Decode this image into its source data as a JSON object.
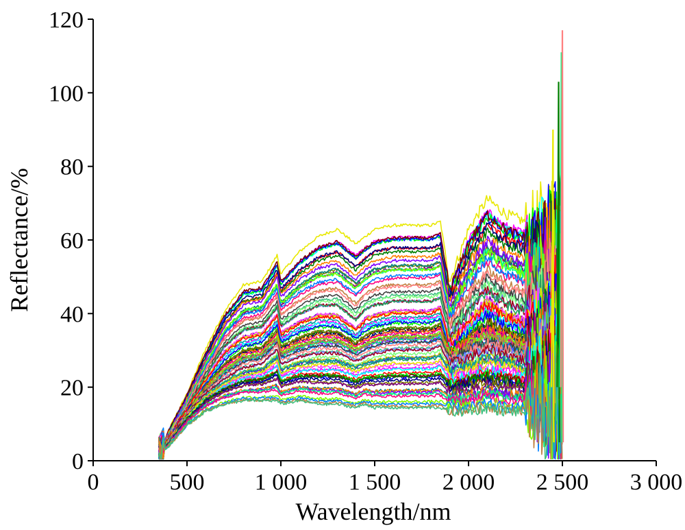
{
  "chart_data": {
    "type": "line",
    "xlabel": "Wavelength/nm",
    "ylabel": "Reflectance/%",
    "xlim": [
      0,
      3000
    ],
    "ylim": [
      0,
      120
    ],
    "xticks": [
      0,
      500,
      1000,
      1500,
      2000,
      2500,
      3000
    ],
    "xtick_labels": [
      "0",
      "500",
      "1 000",
      "1 500",
      "2 000",
      "2 500",
      "3 000"
    ],
    "yticks": [
      0,
      20,
      40,
      60,
      80,
      100,
      120
    ],
    "ytick_labels": [
      "0",
      "20",
      "40",
      "60",
      "80",
      "100",
      "120"
    ],
    "grid": false,
    "legend": false,
    "x_range_of_series": [
      350,
      2500
    ],
    "series_count_approx": 80,
    "series_colors": [
      "#e8e800",
      "#ff00ff",
      "#00ffff",
      "#ff0000",
      "#00ff00",
      "#0000ff",
      "#800000",
      "#008000",
      "#000080",
      "#808000",
      "#800080",
      "#008080",
      "#ff8000",
      "#8000ff",
      "#00ff80",
      "#ff0080",
      "#80ff00",
      "#0080ff",
      "#c08040",
      "#40c080",
      "#404040",
      "#ff8080",
      "#80ff80",
      "#8080ff",
      "#a00020",
      "#20a060",
      "#6000c0",
      "#c0c000",
      "#00a0a0",
      "#ff40ff"
    ],
    "representative_curves": [
      {
        "x": [
          350,
          400,
          500,
          600,
          700,
          800,
          900,
          980,
          1000,
          1100,
          1200,
          1300,
          1400,
          1450,
          1500,
          1600,
          1700,
          1800,
          1850,
          1900,
          2000,
          2100,
          2200,
          2300,
          2400,
          2500
        ],
        "y": [
          1,
          8,
          18,
          30,
          40,
          47,
          48,
          55,
          50,
          56,
          60,
          62,
          58,
          60,
          62,
          63,
          63,
          63,
          64,
          48,
          62,
          70,
          66,
          64,
          62,
          62
        ]
      },
      {
        "x": [
          350,
          400,
          500,
          600,
          700,
          800,
          900,
          980,
          1000,
          1100,
          1200,
          1300,
          1400,
          1450,
          1500,
          1600,
          1700,
          1800,
          1850,
          1900,
          2000,
          2100,
          2200,
          2300,
          2400,
          2500
        ],
        "y": [
          2,
          6,
          14,
          22,
          30,
          34,
          35,
          40,
          35,
          38,
          40,
          40,
          36,
          39,
          40,
          41,
          41,
          41,
          42,
          32,
          38,
          44,
          40,
          38,
          36,
          40
        ]
      },
      {
        "x": [
          350,
          400,
          500,
          600,
          700,
          800,
          900,
          980,
          1000,
          1100,
          1200,
          1300,
          1400,
          1450,
          1500,
          1600,
          1700,
          1800,
          1850,
          1900,
          2000,
          2100,
          2200,
          2300,
          2400,
          2500
        ],
        "y": [
          1,
          5,
          12,
          18,
          22,
          25,
          26,
          30,
          26,
          28,
          29,
          29,
          27,
          28,
          29,
          30,
          30,
          30,
          31,
          26,
          28,
          30,
          29,
          27,
          26,
          24
        ]
      },
      {
        "x": [
          350,
          400,
          500,
          600,
          700,
          800,
          900,
          980,
          1000,
          1100,
          1200,
          1300,
          1400,
          1450,
          1500,
          1600,
          1700,
          1800,
          1850,
          1900,
          2000,
          2100,
          2200,
          2300,
          2400,
          2500
        ],
        "y": [
          2,
          4,
          10,
          14,
          16,
          17,
          17,
          17,
          16,
          17,
          16,
          16,
          15,
          16,
          15,
          15,
          15,
          15,
          15,
          14,
          14,
          15,
          14,
          14,
          13,
          12
        ]
      }
    ],
    "spikes_near_end": [
      {
        "x": 2450,
        "y": 90
      },
      {
        "x": 2480,
        "y": 103
      },
      {
        "x": 2495,
        "y": 111
      },
      {
        "x": 2500,
        "y": 117
      }
    ]
  }
}
